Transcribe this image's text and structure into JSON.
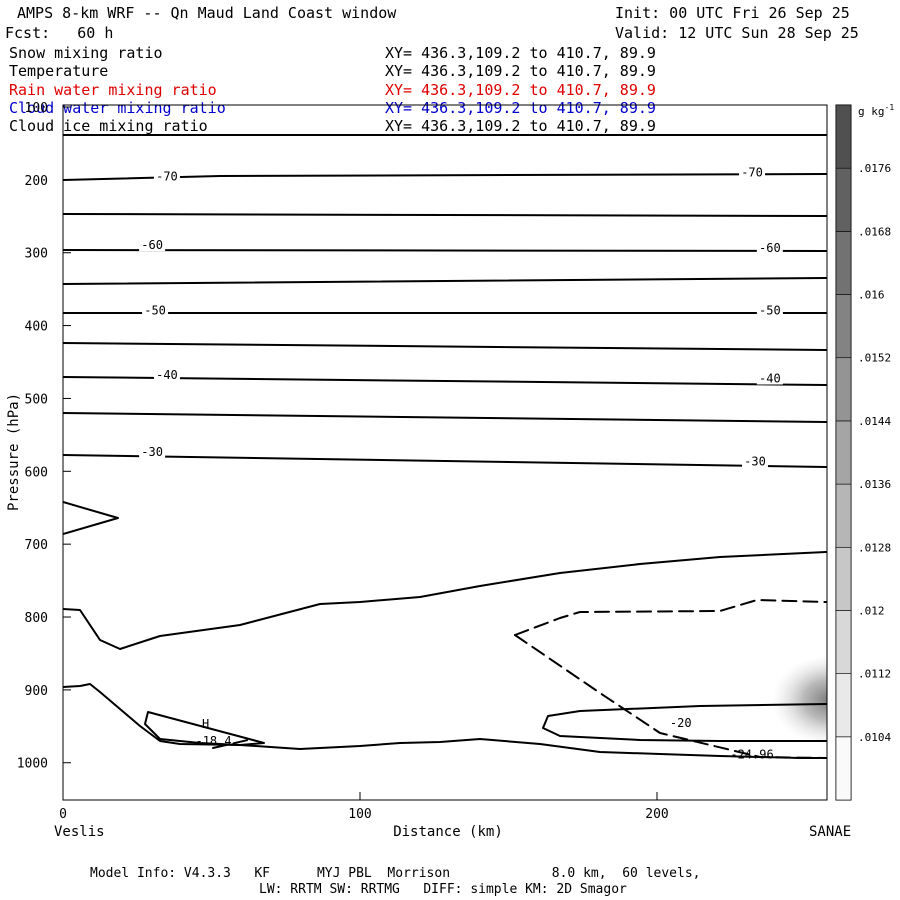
{
  "header": {
    "title": "AMPS 8-km WRF -- Qn Maud Land Coast window",
    "init": "Init: 00 UTC Fri 26 Sep 25",
    "fcst": "Fcst:   60 h",
    "valid": "Valid: 12 UTC Sun 28 Sep 25"
  },
  "fields": [
    {
      "name": "Snow mixing ratio",
      "xy": "XY= 436.3,109.2 to 410.7, 89.9",
      "color": "#000000"
    },
    {
      "name": "Temperature",
      "xy": "XY= 436.3,109.2 to 410.7, 89.9",
      "color": "#000000"
    },
    {
      "name": "Rain water mixing ratio",
      "xy": "XY= 436.3,109.2 to 410.7, 89.9",
      "color": "#e00000"
    },
    {
      "name": "Cloud water mixing ratio",
      "xy": "XY= 436.3,109.2 to 410.7, 89.9",
      "color": "#0000cc"
    },
    {
      "name": "Cloud ice mixing ratio",
      "xy": "XY= 436.3,109.2 to 410.7, 89.9",
      "color": "#000000"
    }
  ],
  "chart_data": {
    "type": "contour-cross-section",
    "ylabel": "Pressure (hPa)",
    "xlabel": "Distance (km)",
    "x_ticks": [
      0,
      100,
      200
    ],
    "y_ticks": [
      100,
      200,
      300,
      400,
      500,
      600,
      700,
      800,
      900,
      1000
    ],
    "xlim": [
      0,
      258
    ],
    "ylim": [
      1050,
      100
    ],
    "left_endpoint": "Veslis",
    "right_endpoint": "SANAE",
    "colorbar": {
      "unit": "g kg",
      "unit_exp": "-1",
      "levels": [
        ".0104",
        ".0112",
        ".012",
        ".0128",
        ".0136",
        ".0144",
        ".0152",
        ".016",
        ".0168",
        ".0176"
      ]
    },
    "isotherm_labels": [
      {
        "text": "-70",
        "x": 35,
        "p": 197
      },
      {
        "text": "-70",
        "x": 232,
        "p": 191
      },
      {
        "text": "-60",
        "x": 30,
        "p": 291
      },
      {
        "text": "-60",
        "x": 238,
        "p": 295
      },
      {
        "text": "-50",
        "x": 31,
        "p": 381
      },
      {
        "text": "-50",
        "x": 238,
        "p": 381
      },
      {
        "text": "-40",
        "x": 35,
        "p": 469
      },
      {
        "text": "-40",
        "x": 238,
        "p": 474
      },
      {
        "text": "-30",
        "x": 30,
        "p": 575
      },
      {
        "text": "-30",
        "x": 233,
        "p": 588
      },
      {
        "text": "-20",
        "x": 208,
        "p": 947
      }
    ],
    "extrema": [
      {
        "kind": "H",
        "value": "-18.4",
        "x": 48,
        "p": 955
      },
      {
        "kind": "min",
        "value": "-24.96",
        "x": 232,
        "p": 989
      }
    ]
  },
  "footer": {
    "line1": "Model Info: V4.3.3   KF      MYJ PBL  Morrison             8.0 km,  60 levels,",
    "line2": "LW: RRTM SW: RRTMG   DIFF: simple KM: 2D Smagor"
  }
}
